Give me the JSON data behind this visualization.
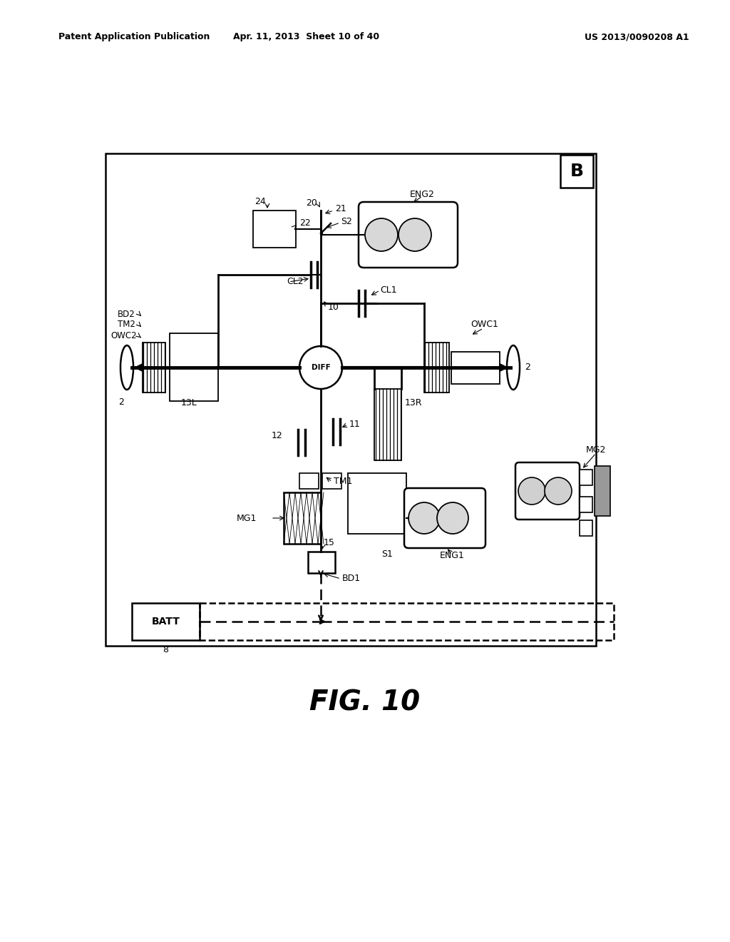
{
  "header_left": "Patent Application Publication",
  "header_center": "Apr. 11, 2013  Sheet 10 of 40",
  "header_right": "US 2013/0090208 A1",
  "fig_caption": "FIG. 10",
  "diagram_letter": "B",
  "bg": "#ffffff"
}
